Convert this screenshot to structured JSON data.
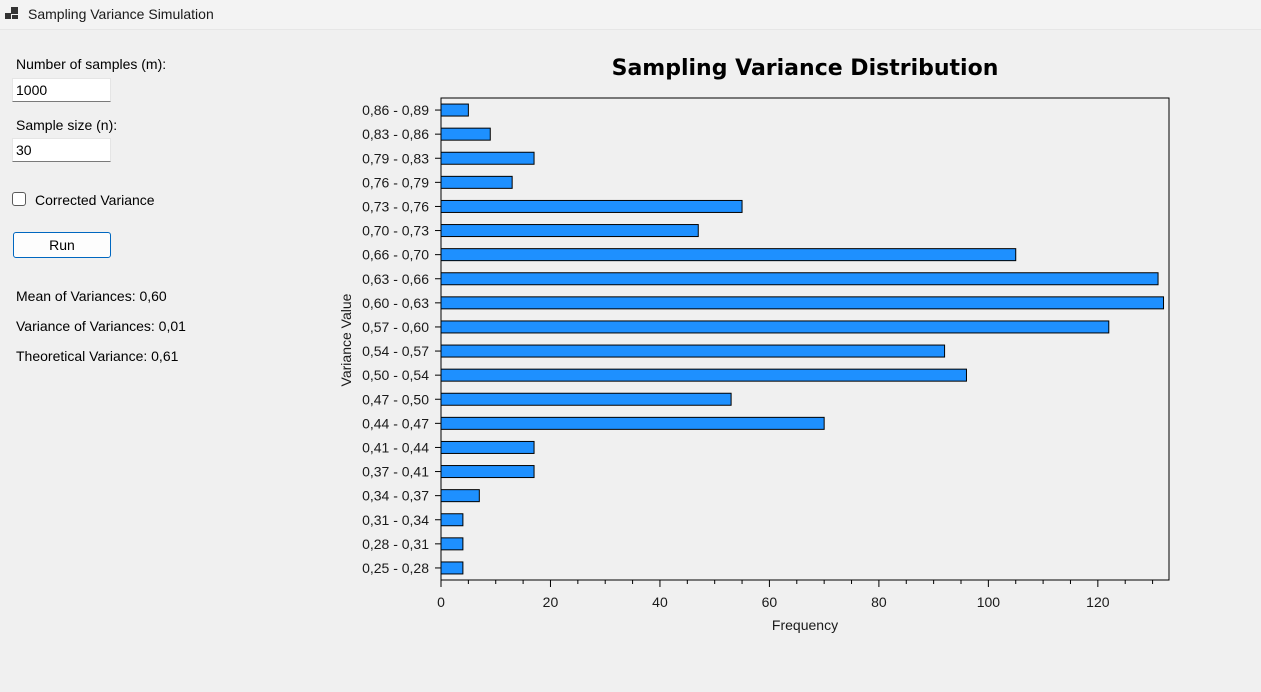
{
  "window": {
    "title": "Sampling Variance Simulation"
  },
  "form": {
    "samples_label": "Number of samples (m):",
    "samples_value": "1000",
    "size_label": "Sample size (n):",
    "size_value": "30",
    "corrected_label": "Corrected Variance",
    "corrected_checked": false,
    "run_label": "Run"
  },
  "results": {
    "mean": "Mean of Variances: 0,60",
    "variance": "Variance of Variances: 0,01",
    "theoretical": "Theoretical Variance: 0,61"
  },
  "chart_data": {
    "type": "bar",
    "orientation": "horizontal",
    "title": "Sampling Variance Distribution",
    "xlabel": "Frequency",
    "ylabel": "Variance Value",
    "xlim": [
      0,
      133
    ],
    "xticks": [
      0,
      20,
      40,
      60,
      80,
      100,
      120
    ],
    "bar_color": "#1e90ff",
    "categories": [
      "0,86 - 0,89",
      "0,83 - 0,86",
      "0,79 - 0,83",
      "0,76 - 0,79",
      "0,73 - 0,76",
      "0,70 - 0,73",
      "0,66 - 0,70",
      "0,63 - 0,66",
      "0,60 - 0,63",
      "0,57 - 0,60",
      "0,54 - 0,57",
      "0,50 - 0,54",
      "0,47 - 0,50",
      "0,44 - 0,47",
      "0,41 - 0,44",
      "0,37 - 0,41",
      "0,34 - 0,37",
      "0,31 - 0,34",
      "0,28 - 0,31",
      "0,25 - 0,28"
    ],
    "values": [
      5,
      9,
      17,
      13,
      55,
      47,
      105,
      131,
      132,
      122,
      92,
      96,
      53,
      70,
      17,
      17,
      7,
      4,
      4,
      4
    ]
  }
}
